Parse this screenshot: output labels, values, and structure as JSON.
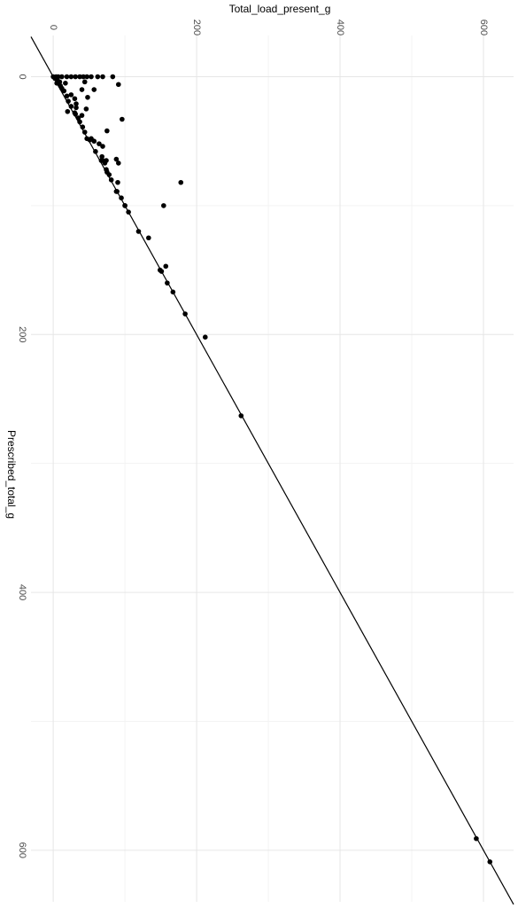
{
  "chart_data": {
    "type": "scatter",
    "x_label": "Total_load_present_g",
    "y_label": "Prescribed_total_g",
    "color": "#000000",
    "xlim": [
      -31,
      642
    ],
    "ylim": [
      -32,
      640
    ],
    "xticks": [
      0,
      200,
      400,
      600
    ],
    "yticks": [
      0,
      200,
      400,
      600
    ],
    "xminor": [
      100,
      300,
      500
    ],
    "yminor": [
      100,
      300,
      500
    ],
    "grid": true,
    "reference_line": {
      "intercept": 0,
      "slope": 1
    },
    "x": [
      590,
      609,
      262,
      212,
      184,
      167,
      159,
      157,
      151,
      149,
      133,
      119,
      178,
      154,
      105,
      100,
      100,
      95,
      90,
      89,
      88,
      81,
      78,
      75,
      74,
      72,
      69,
      67,
      91,
      88,
      74,
      68,
      69,
      64,
      59,
      57,
      53,
      51,
      75,
      96,
      47,
      44,
      41,
      37,
      40,
      35,
      31,
      30,
      25,
      21,
      19,
      15,
      10,
      6,
      2.5,
      0,
      4,
      7,
      12,
      19,
      25,
      31,
      37,
      42,
      47,
      53,
      62,
      69,
      83,
      91,
      44,
      57,
      40,
      25,
      12,
      30,
      48,
      32,
      46,
      20,
      32,
      5,
      9,
      17
    ],
    "y": [
      591,
      609,
      263,
      202,
      184,
      167,
      160,
      147,
      151,
      150,
      125,
      120,
      82,
      100,
      105,
      100,
      100,
      94,
      82,
      89,
      89,
      80,
      76,
      74,
      72,
      67,
      65,
      65,
      67,
      64,
      65,
      62,
      54,
      52,
      58,
      50,
      48,
      49,
      42,
      33,
      48,
      43,
      39,
      35,
      30,
      32,
      29,
      28,
      23,
      19,
      15,
      11,
      7,
      3,
      1.4,
      0,
      0,
      0,
      0,
      0,
      0,
      0,
      0,
      0,
      0,
      0,
      0,
      0,
      0,
      6,
      4,
      10,
      10,
      14,
      9,
      17,
      16,
      21,
      25,
      27,
      24,
      5,
      4,
      5
    ]
  }
}
